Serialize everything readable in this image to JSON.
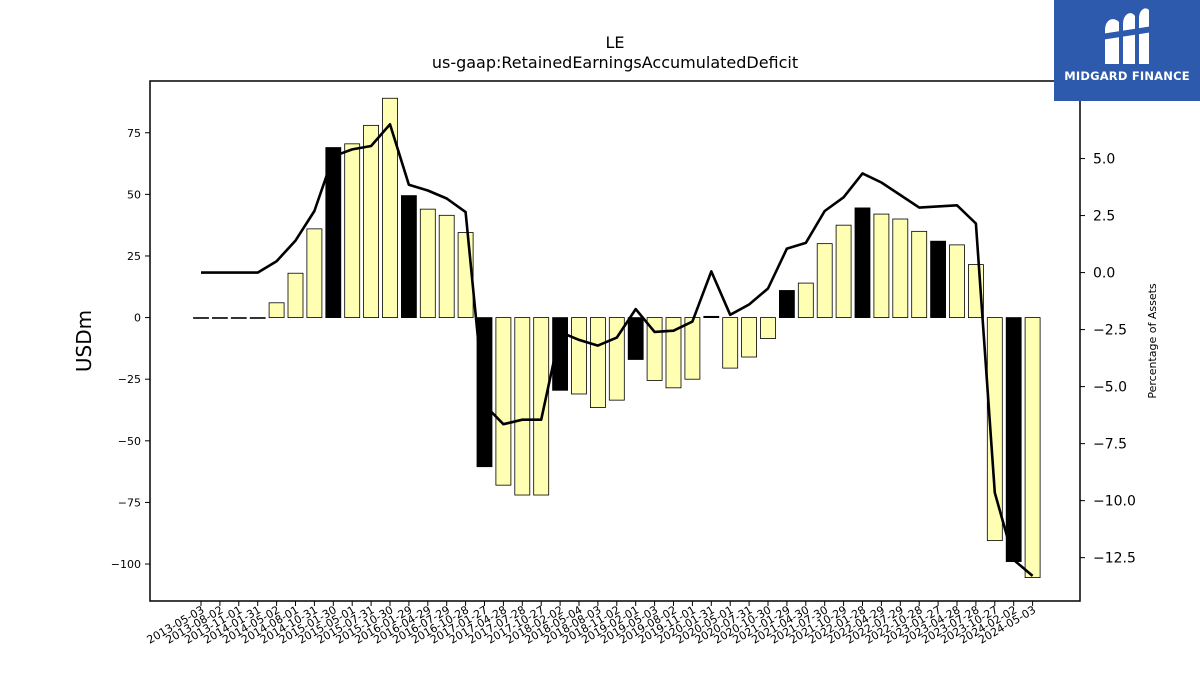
{
  "brand": {
    "name": "MIDGARD FINANCE",
    "bg_color": "#2d5aad",
    "icon": "midgard-m-logo-icon"
  },
  "chart_data": {
    "type": "bar",
    "title": "LE",
    "subtitle": "us-gaap:RetainedEarningsAccumulatedDeficit",
    "ylabel": "USDm",
    "y2label": "Percentage of Assets",
    "ylim": [
      -115,
      96
    ],
    "y2lim": [
      -14.4,
      8.4
    ],
    "yticks": [
      -100,
      -75,
      -50,
      -25,
      0,
      25,
      50,
      75
    ],
    "y2ticks": [
      -12.5,
      -10.0,
      -7.5,
      -5.0,
      -2.5,
      0.0,
      2.5,
      5.0
    ],
    "grid": false,
    "colors": {
      "bar_default": "#ffffb3",
      "bar_highlight": "#000000",
      "line": "#000000"
    },
    "categories": [
      "2013-05-03",
      "2013-08-02",
      "2013-11-01",
      "2014-01-31",
      "2014-05-02",
      "2014-08-01",
      "2014-10-31",
      "2015-01-30",
      "2015-05-01",
      "2015-07-31",
      "2015-10-30",
      "2016-01-29",
      "2016-04-29",
      "2016-07-29",
      "2016-10-28",
      "2017-01-27",
      "2017-04-28",
      "2017-07-28",
      "2017-10-27",
      "2018-02-02",
      "2018-05-04",
      "2018-08-03",
      "2018-11-02",
      "2019-02-01",
      "2019-05-03",
      "2019-08-02",
      "2019-11-01",
      "2020-01-31",
      "2020-05-01",
      "2020-07-31",
      "2020-10-30",
      "2021-01-29",
      "2021-04-30",
      "2021-07-30",
      "2021-10-29",
      "2022-01-28",
      "2022-04-29",
      "2022-07-29",
      "2022-10-28",
      "2023-01-27",
      "2023-04-28",
      "2023-07-28",
      "2023-10-27",
      "2024-02-02",
      "2024-05-03"
    ],
    "tick_labels": [
      "2013-05-03",
      "2013-08-02",
      "2013-11-01",
      "2014-01-31",
      "2014-05-02",
      "2014-08-01",
      "2014-10-31",
      "2015-01-30",
      "2015-05-01",
      "2015-07-31",
      "2015-10-30",
      "2016-01-29",
      "2016-04-29",
      "2016-07-29",
      "2016-10-28",
      "2017-01-27",
      "2017-04-28",
      "2017-07-28",
      "2017-10-27",
      "2018-02-02",
      "2018-05-04",
      "2018-08-03",
      "2018-11-02",
      "2019-02-01",
      "2019-05-03",
      "2019-08-02",
      "2019-11-01",
      "2020-01-31",
      "2020-05-01",
      "2020-07-31",
      "2020-10-30",
      "2021-01-29",
      "2021-04-30",
      "2021-07-30",
      "2021-10-29",
      "2022-01-28",
      "2022-04-29",
      "2022-07-29",
      "2022-10-28",
      "2023-01-27",
      "2023-04-28",
      "2023-07-28",
      "2023-10-27",
      "2024-02-02",
      "2024-05-03"
    ],
    "series": [
      {
        "type": "bar",
        "axis": "left",
        "values": [
          0,
          0,
          0,
          0,
          6,
          18,
          36,
          69,
          70.5,
          78,
          89,
          49.5,
          44,
          41.5,
          34.5,
          -60.5,
          -68,
          -72,
          -72,
          -29.5,
          -31,
          -36.5,
          -33.5,
          -17,
          -25.5,
          -28.5,
          -25,
          0.5,
          -20.5,
          -16,
          -8.5,
          11,
          14,
          30,
          37.5,
          44.5,
          42,
          40,
          35,
          31,
          29.5,
          21.5,
          -90.5,
          -99,
          -105.5
        ],
        "highlight": [
          false,
          false,
          false,
          false,
          false,
          false,
          false,
          true,
          false,
          false,
          false,
          true,
          false,
          false,
          false,
          true,
          false,
          false,
          false,
          true,
          false,
          false,
          false,
          true,
          false,
          false,
          false,
          true,
          false,
          false,
          false,
          true,
          false,
          false,
          false,
          true,
          false,
          false,
          false,
          true,
          false,
          false,
          false,
          true,
          false
        ]
      },
      {
        "type": "line",
        "axis": "right",
        "values": [
          0,
          0,
          0,
          0,
          0.5,
          1.4,
          2.7,
          5.1,
          5.4,
          5.55,
          6.5,
          3.85,
          3.6,
          3.25,
          2.65,
          -5.8,
          -6.65,
          -6.45,
          -6.45,
          -2.6,
          -2.95,
          -3.2,
          -2.85,
          -1.6,
          -2.6,
          -2.55,
          -2.15,
          0.05,
          -1.85,
          -1.4,
          -0.7,
          1.05,
          1.3,
          2.7,
          3.3,
          4.35,
          3.95,
          3.4,
          2.85,
          2.9,
          2.95,
          2.15,
          -9.65,
          -12.6,
          -13.3
        ]
      }
    ]
  }
}
